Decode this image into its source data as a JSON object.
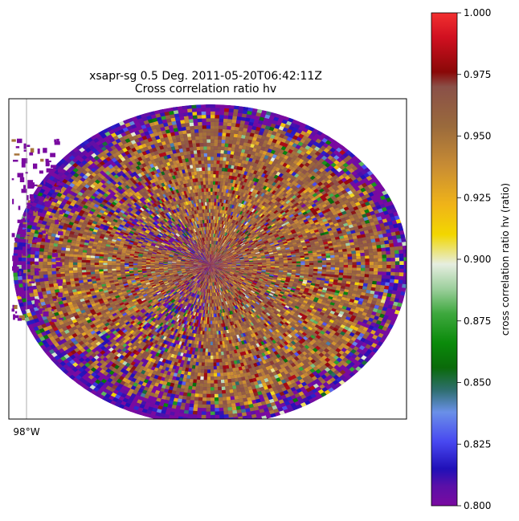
{
  "chart_data": {
    "type": "heatmap",
    "title_line1": "xsapr-sg 0.5 Deg. 2011-05-20T06:42:11Z",
    "title_line2": "Cross correlation ratio hv",
    "x_tick_label": "98°W",
    "colorbar": {
      "label": "cross correlation ratio hv (ratio)",
      "range": [
        0.8,
        1.0
      ],
      "ticks": [
        "0.800",
        "0.825",
        "0.850",
        "0.875",
        "0.900",
        "0.925",
        "0.950",
        "0.975",
        "1.000"
      ],
      "stops": [
        [
          0.0,
          "#7a0aa0"
        ],
        [
          0.04,
          "#5a10a8"
        ],
        [
          0.075,
          "#2010b8"
        ],
        [
          0.13,
          "#4848f0"
        ],
        [
          0.19,
          "#6a90e8"
        ],
        [
          0.235,
          "#2e6e6e"
        ],
        [
          0.28,
          "#0a6a0a"
        ],
        [
          0.33,
          "#0a8a0a"
        ],
        [
          0.39,
          "#3ea83e"
        ],
        [
          0.44,
          "#9ccf9c"
        ],
        [
          0.49,
          "#e6eee0"
        ],
        [
          0.55,
          "#f2d700"
        ],
        [
          0.61,
          "#f0b418"
        ],
        [
          0.69,
          "#c88c34"
        ],
        [
          0.77,
          "#9a6a3c"
        ],
        [
          0.85,
          "#8a5048"
        ],
        [
          0.88,
          "#8a0808"
        ],
        [
          0.95,
          "#d01020"
        ],
        [
          1.0,
          "#f23030"
        ]
      ]
    },
    "field": {
      "dominant_values": [
        0.94,
        0.95,
        0.96,
        0.97
      ],
      "low_value_echo": 0.8
    }
  }
}
